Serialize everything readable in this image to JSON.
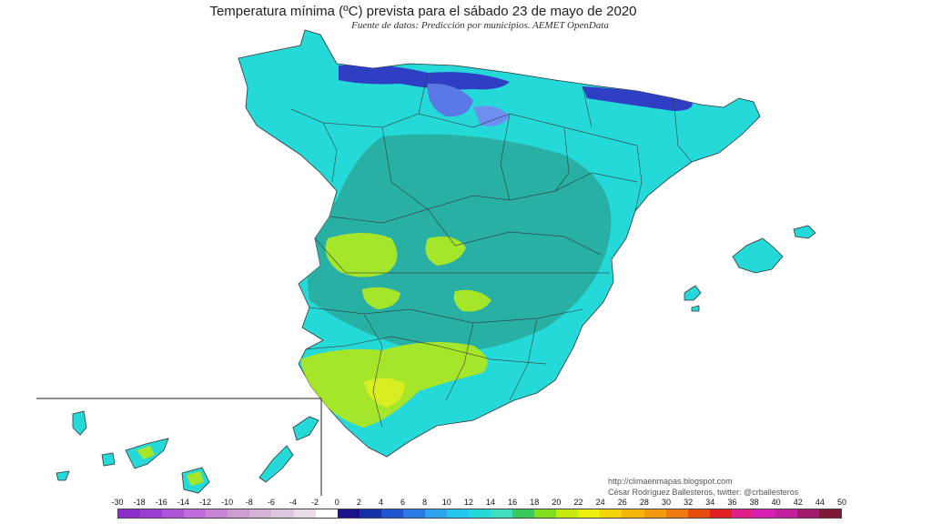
{
  "title": "Temperatura mínima (ºC) prevista para el sábado 23 de mayo de 2020",
  "subtitle": "Fuente de datos: Predicción por municipios. AEMET OpenData",
  "credits": {
    "blog": "http://climaenmapas.blogspot.com",
    "author": "César Rodríguez Ballesteros, twitter: @crballesteros"
  },
  "legend": {
    "ticks": [
      "-30",
      "-18",
      "-16",
      "-14",
      "-12",
      "-10",
      "-8",
      "-6",
      "-4",
      "-2",
      "0",
      "2",
      "4",
      "6",
      "8",
      "10",
      "12",
      "14",
      "16",
      "18",
      "20",
      "22",
      "24",
      "26",
      "28",
      "30",
      "32",
      "34",
      "36",
      "38",
      "40",
      "42",
      "44",
      "50"
    ],
    "colors": [
      "#8a2fc9",
      "#9b3fd4",
      "#ad55d9",
      "#bf6cdc",
      "#c985d6",
      "#cf9ccf",
      "#d6b3d6",
      "#ddc8dd",
      "#e8dde8",
      "#ffffff",
      "#1a0f8c",
      "#1432a8",
      "#1f55d1",
      "#2b7be6",
      "#2ea3ee",
      "#22c7ef",
      "#26d9d9",
      "#3fe0c0",
      "#39c95a",
      "#7fe01e",
      "#c8ea10",
      "#eef010",
      "#f7d40a",
      "#f5b70c",
      "#f29b0f",
      "#ee7a10",
      "#e84d10",
      "#e02020",
      "#e0208a",
      "#d81fb3",
      "#c21e9e",
      "#a01b6e",
      "#7d1836"
    ],
    "unit": "ºC"
  },
  "map": {
    "regions": [
      "Península Ibérica",
      "Islas Baleares",
      "Islas Canarias"
    ],
    "dominant_colors": {
      "sea": "#ffffff",
      "main": "#26d9d9",
      "plateau": "#2aa89a",
      "warm": "#a6e62a",
      "cold": "#2f3fc4"
    }
  }
}
